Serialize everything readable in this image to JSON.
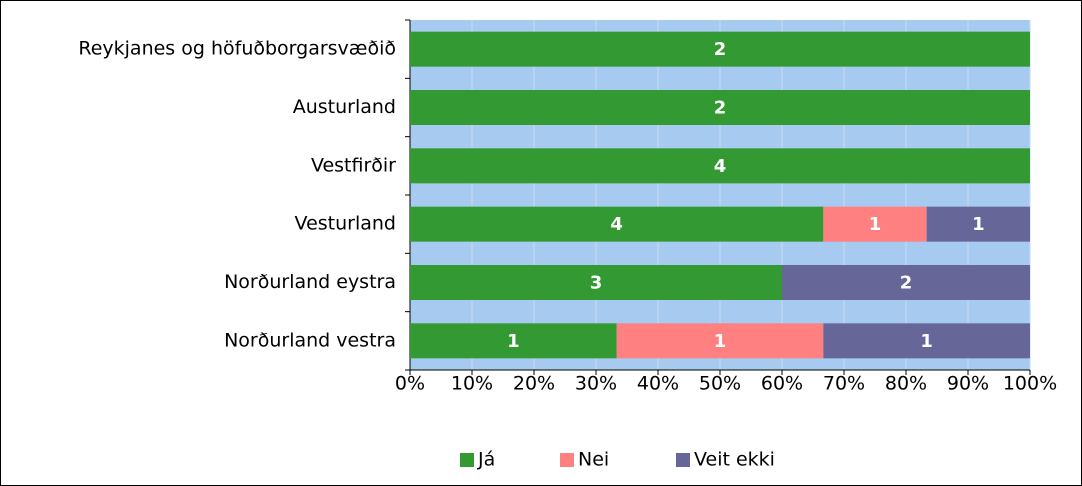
{
  "chart_data": {
    "type": "bar",
    "orientation": "horizontal",
    "stacked": "percent",
    "categories": [
      "Reykjanes og höfuðborgarsvæðið",
      "Austurland",
      "Vestfirðir",
      "Vesturland",
      "Norðurland eystra",
      "Norðurland vestra"
    ],
    "series": [
      {
        "name": "Já",
        "color": "#339933",
        "values": [
          2,
          2,
          4,
          4,
          3,
          1
        ]
      },
      {
        "name": "Nei",
        "color": "#ff8080",
        "values": [
          0,
          0,
          0,
          1,
          0,
          1
        ]
      },
      {
        "name": "Veit ekki",
        "color": "#666699",
        "values": [
          0,
          0,
          0,
          1,
          2,
          1
        ]
      }
    ],
    "xlim": [
      0,
      100
    ],
    "xticks": [
      {
        "value": 0,
        "label": "0%"
      },
      {
        "value": 10,
        "label": "10%"
      },
      {
        "value": 20,
        "label": "20%"
      },
      {
        "value": 30,
        "label": "30%"
      },
      {
        "value": 40,
        "label": "40%"
      },
      {
        "value": 50,
        "label": "50%"
      },
      {
        "value": 60,
        "label": "60%"
      },
      {
        "value": 70,
        "label": "70%"
      },
      {
        "value": 80,
        "label": "80%"
      },
      {
        "value": 90,
        "label": "90%"
      },
      {
        "value": 100,
        "label": "100%"
      }
    ],
    "grid": true,
    "legend": "bottom"
  }
}
